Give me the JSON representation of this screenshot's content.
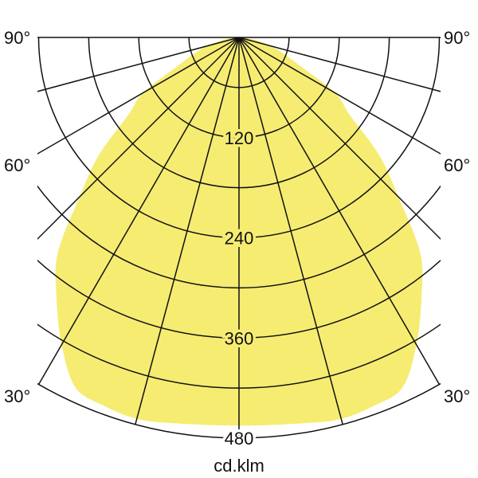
{
  "chart_data": {
    "type": "polar",
    "unit_label": "cd.klm",
    "angle_labels": [
      "90°",
      "60°",
      "30°"
    ],
    "angle_label_values": [
      90,
      60,
      30
    ],
    "radial_tick_labels": [
      "120",
      "240",
      "360",
      "480"
    ],
    "radial_tick_values": [
      120,
      240,
      360,
      480
    ],
    "radial_grid_step": 60,
    "angle_grid_step": 15,
    "rlim": [
      0,
      480
    ],
    "fill_color": "#f6ec72",
    "grid": true,
    "series": [
      {
        "angles": [
          0,
          10,
          15,
          20,
          25,
          30,
          35,
          40,
          45,
          50,
          55,
          60,
          65,
          70,
          75,
          80,
          85,
          90
        ],
        "values": [
          465,
          469,
          473,
          470,
          463,
          425,
          381,
          338,
          270,
          219,
          162,
          133,
          81,
          57,
          40,
          22,
          8,
          0
        ],
        "symmetric": true
      }
    ]
  }
}
